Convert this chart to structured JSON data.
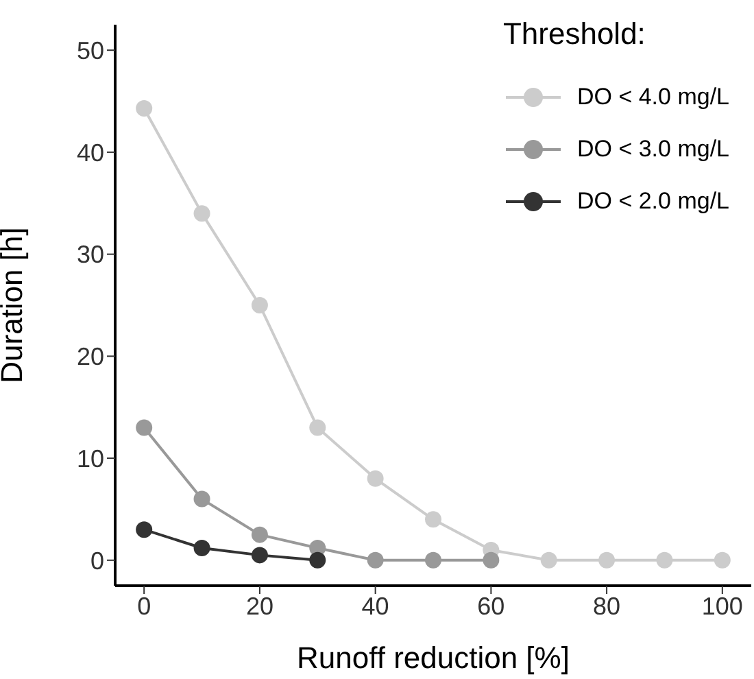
{
  "chart_data": {
    "type": "line",
    "xlabel": "Runoff reduction [%]",
    "ylabel": "Duration [h]",
    "legend_title": "Threshold:",
    "legend": "top right",
    "marker": "circle",
    "line_style": "solid",
    "grid": false,
    "x": [
      0,
      10,
      20,
      30,
      40,
      50,
      60,
      70,
      80,
      90,
      100
    ],
    "xlim": [
      -5,
      105
    ],
    "xticks": [
      0,
      20,
      40,
      60,
      80,
      100
    ],
    "ylim": [
      -2.5,
      52.5
    ],
    "yticks": [
      0,
      10,
      20,
      30,
      40,
      50
    ],
    "series": [
      {
        "name": "DO < 4.0 mg/L",
        "color": "#cccccc",
        "values": [
          44.3,
          34,
          25,
          13,
          8,
          4,
          1,
          0,
          0,
          0,
          0
        ]
      },
      {
        "name": "DO < 3.0 mg/L",
        "color": "#999999",
        "values": [
          13,
          6,
          2.5,
          1.2,
          0,
          0,
          0,
          null,
          null,
          null,
          null
        ]
      },
      {
        "name": "DO < 2.0 mg/L",
        "color": "#333333",
        "values": [
          3,
          1.2,
          0.5,
          0,
          null,
          null,
          null,
          null,
          null,
          null,
          null
        ]
      }
    ]
  }
}
